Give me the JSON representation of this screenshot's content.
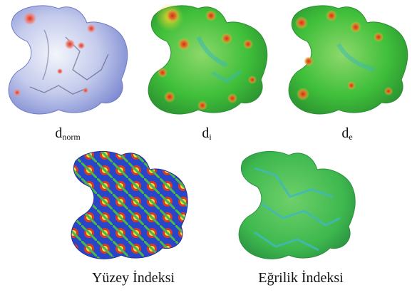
{
  "figure": {
    "panels": [
      {
        "id": "dnorm",
        "label_main": "d",
        "label_sub": "norm",
        "surface": "dnorm"
      },
      {
        "id": "di",
        "label_main": "d",
        "label_sub": "i",
        "surface": "di"
      },
      {
        "id": "de",
        "label_main": "d",
        "label_sub": "e",
        "surface": "de"
      },
      {
        "id": "shape",
        "label": "Yüzey İndeksi",
        "surface": "shape-index"
      },
      {
        "id": "curv",
        "label": "Eğrilik İndeksi",
        "surface": "curvedness"
      }
    ]
  },
  "colors": {
    "dnorm_base": "#9aa6dd",
    "dnorm_white": "#f1f2f8",
    "dnorm_red": "#e25050",
    "di_green": "#3fbf3a",
    "di_yellow": "#d8d330",
    "di_orange": "#e07a2a",
    "di_red": "#cc3020",
    "di_cyan": "#38b8b8",
    "shape_blue": "#2a46c8",
    "shape_red": "#d83a2a",
    "shape_yellow": "#e8e040",
    "shape_green": "#4ab848",
    "curv_green": "#3eb84e",
    "curv_cyan": "#40b8c0"
  }
}
